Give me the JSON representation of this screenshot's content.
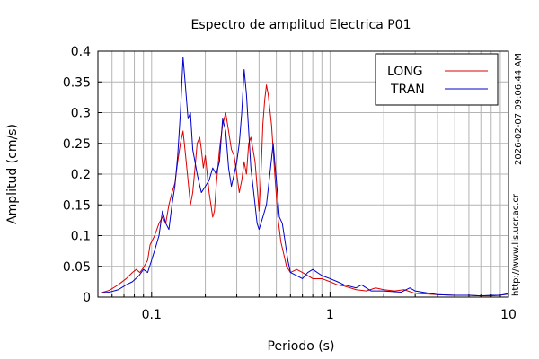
{
  "chart_data": {
    "type": "line",
    "title": "Espectro de amplitud Electrica P01",
    "xlabel": "Periodo (s)",
    "ylabel": "Amplitud (cm/s)",
    "xscale": "log",
    "xlim": [
      0.05,
      10
    ],
    "ylim": [
      0,
      0.4
    ],
    "xticks": [
      {
        "v": 0.1,
        "label": "0.1"
      },
      {
        "v": 1,
        "label": "1"
      },
      {
        "v": 10,
        "label": "10"
      }
    ],
    "yticks": [
      {
        "v": 0,
        "label": "0"
      },
      {
        "v": 0.05,
        "label": "0.05"
      },
      {
        "v": 0.1,
        "label": "0.1"
      },
      {
        "v": 0.15,
        "label": "0.15"
      },
      {
        "v": 0.2,
        "label": "0.2"
      },
      {
        "v": 0.25,
        "label": "0.25"
      },
      {
        "v": 0.3,
        "label": "0.3"
      },
      {
        "v": 0.35,
        "label": "0.35"
      },
      {
        "v": 0.4,
        "label": "0.4"
      }
    ],
    "grid": true,
    "legend_position": "top-right",
    "series": [
      {
        "name": "LONG",
        "color": "#dd0000",
        "points": [
          [
            0.052,
            0.007
          ],
          [
            0.058,
            0.011
          ],
          [
            0.065,
            0.02
          ],
          [
            0.072,
            0.03
          ],
          [
            0.078,
            0.04
          ],
          [
            0.082,
            0.045
          ],
          [
            0.086,
            0.04
          ],
          [
            0.09,
            0.048
          ],
          [
            0.095,
            0.06
          ],
          [
            0.098,
            0.085
          ],
          [
            0.1,
            0.09
          ],
          [
            0.104,
            0.1
          ],
          [
            0.11,
            0.12
          ],
          [
            0.115,
            0.13
          ],
          [
            0.12,
            0.12
          ],
          [
            0.125,
            0.15
          ],
          [
            0.13,
            0.17
          ],
          [
            0.135,
            0.185
          ],
          [
            0.14,
            0.22
          ],
          [
            0.145,
            0.25
          ],
          [
            0.15,
            0.27
          ],
          [
            0.155,
            0.23
          ],
          [
            0.16,
            0.19
          ],
          [
            0.165,
            0.15
          ],
          [
            0.17,
            0.17
          ],
          [
            0.175,
            0.21
          ],
          [
            0.18,
            0.25
          ],
          [
            0.186,
            0.26
          ],
          [
            0.19,
            0.24
          ],
          [
            0.195,
            0.21
          ],
          [
            0.2,
            0.23
          ],
          [
            0.205,
            0.2
          ],
          [
            0.21,
            0.17
          ],
          [
            0.215,
            0.15
          ],
          [
            0.22,
            0.13
          ],
          [
            0.225,
            0.14
          ],
          [
            0.23,
            0.18
          ],
          [
            0.24,
            0.24
          ],
          [
            0.25,
            0.28
          ],
          [
            0.26,
            0.3
          ],
          [
            0.27,
            0.27
          ],
          [
            0.28,
            0.24
          ],
          [
            0.29,
            0.23
          ],
          [
            0.3,
            0.2
          ],
          [
            0.31,
            0.17
          ],
          [
            0.32,
            0.19
          ],
          [
            0.33,
            0.22
          ],
          [
            0.34,
            0.2
          ],
          [
            0.35,
            0.25
          ],
          [
            0.36,
            0.26
          ],
          [
            0.37,
            0.24
          ],
          [
            0.38,
            0.22
          ],
          [
            0.39,
            0.18
          ],
          [
            0.4,
            0.14
          ],
          [
            0.41,
            0.2
          ],
          [
            0.42,
            0.28
          ],
          [
            0.43,
            0.32
          ],
          [
            0.44,
            0.345
          ],
          [
            0.45,
            0.33
          ],
          [
            0.47,
            0.28
          ],
          [
            0.49,
            0.2
          ],
          [
            0.51,
            0.13
          ],
          [
            0.53,
            0.09
          ],
          [
            0.55,
            0.07
          ],
          [
            0.57,
            0.05
          ],
          [
            0.6,
            0.04
          ],
          [
            0.65,
            0.045
          ],
          [
            0.7,
            0.04
          ],
          [
            0.75,
            0.035
          ],
          [
            0.8,
            0.03
          ],
          [
            0.9,
            0.03
          ],
          [
            1.0,
            0.025
          ],
          [
            1.1,
            0.02
          ],
          [
            1.2,
            0.018
          ],
          [
            1.3,
            0.015
          ],
          [
            1.4,
            0.012
          ],
          [
            1.6,
            0.01
          ],
          [
            1.8,
            0.015
          ],
          [
            2.0,
            0.012
          ],
          [
            2.3,
            0.01
          ],
          [
            2.6,
            0.012
          ],
          [
            3.0,
            0.006
          ],
          [
            4.0,
            0.004
          ],
          [
            5.0,
            0.003
          ],
          [
            6.0,
            0.003
          ],
          [
            7.0,
            0.002
          ],
          [
            8.0,
            0.002
          ],
          [
            9.0,
            0.003
          ],
          [
            10.0,
            0.006
          ]
        ]
      },
      {
        "name": "TRAN",
        "color": "#0000cc",
        "points": [
          [
            0.052,
            0.007
          ],
          [
            0.058,
            0.008
          ],
          [
            0.065,
            0.012
          ],
          [
            0.072,
            0.02
          ],
          [
            0.078,
            0.025
          ],
          [
            0.085,
            0.035
          ],
          [
            0.09,
            0.045
          ],
          [
            0.095,
            0.04
          ],
          [
            0.1,
            0.06
          ],
          [
            0.105,
            0.08
          ],
          [
            0.11,
            0.1
          ],
          [
            0.115,
            0.14
          ],
          [
            0.12,
            0.12
          ],
          [
            0.125,
            0.11
          ],
          [
            0.13,
            0.15
          ],
          [
            0.135,
            0.18
          ],
          [
            0.14,
            0.23
          ],
          [
            0.145,
            0.3
          ],
          [
            0.15,
            0.39
          ],
          [
            0.155,
            0.34
          ],
          [
            0.16,
            0.29
          ],
          [
            0.165,
            0.3
          ],
          [
            0.17,
            0.24
          ],
          [
            0.175,
            0.22
          ],
          [
            0.18,
            0.2
          ],
          [
            0.19,
            0.17
          ],
          [
            0.2,
            0.18
          ],
          [
            0.21,
            0.19
          ],
          [
            0.22,
            0.21
          ],
          [
            0.23,
            0.2
          ],
          [
            0.24,
            0.22
          ],
          [
            0.25,
            0.29
          ],
          [
            0.26,
            0.27
          ],
          [
            0.27,
            0.21
          ],
          [
            0.28,
            0.18
          ],
          [
            0.29,
            0.2
          ],
          [
            0.3,
            0.22
          ],
          [
            0.31,
            0.25
          ],
          [
            0.32,
            0.3
          ],
          [
            0.33,
            0.37
          ],
          [
            0.34,
            0.33
          ],
          [
            0.35,
            0.27
          ],
          [
            0.36,
            0.21
          ],
          [
            0.37,
            0.18
          ],
          [
            0.38,
            0.15
          ],
          [
            0.39,
            0.12
          ],
          [
            0.4,
            0.11
          ],
          [
            0.42,
            0.13
          ],
          [
            0.44,
            0.15
          ],
          [
            0.46,
            0.2
          ],
          [
            0.48,
            0.25
          ],
          [
            0.5,
            0.19
          ],
          [
            0.52,
            0.13
          ],
          [
            0.54,
            0.12
          ],
          [
            0.56,
            0.09
          ],
          [
            0.58,
            0.06
          ],
          [
            0.6,
            0.04
          ],
          [
            0.65,
            0.035
          ],
          [
            0.7,
            0.03
          ],
          [
            0.75,
            0.04
          ],
          [
            0.8,
            0.045
          ],
          [
            0.9,
            0.035
          ],
          [
            1.0,
            0.03
          ],
          [
            1.1,
            0.025
          ],
          [
            1.2,
            0.02
          ],
          [
            1.4,
            0.015
          ],
          [
            1.5,
            0.02
          ],
          [
            1.7,
            0.01
          ],
          [
            2.0,
            0.01
          ],
          [
            2.5,
            0.008
          ],
          [
            2.8,
            0.015
          ],
          [
            3.0,
            0.01
          ],
          [
            4.0,
            0.004
          ],
          [
            5.0,
            0.003
          ],
          [
            6.0,
            0.003
          ],
          [
            7.0,
            0.002
          ],
          [
            8.0,
            0.003
          ],
          [
            9.0,
            0.003
          ],
          [
            10.0,
            0.005
          ]
        ]
      }
    ]
  },
  "side_text": {
    "timestamp": "2026-02-07 09:06:44 AM",
    "url": "http://www.lis.ucr.ac.cr"
  }
}
